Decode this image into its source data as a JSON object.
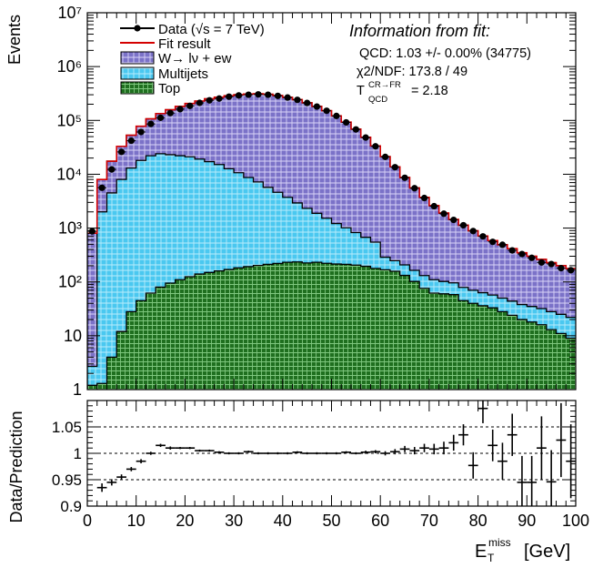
{
  "chart_data": [
    {
      "type": "histogram",
      "yscale": "log",
      "xlim": [
        0,
        100
      ],
      "ylim": [
        1,
        10000000
      ],
      "ylabel": "Events",
      "yticks": [
        "1",
        "10",
        "10²",
        "10³",
        "10⁴",
        "10⁵",
        "10⁶",
        "10⁷"
      ],
      "bin_width": 2,
      "legend_placement": "top-left",
      "colors": {
        "data": "#000000",
        "fit": "#d40000",
        "w": "#7b72c8",
        "multijets": "#4ac8f0",
        "top": "#1f6f1f"
      },
      "legend": {
        "data": "Data (√s = 7 TeV)",
        "fit": "Fit result",
        "w": "W→ lν + ew",
        "multijets": "Multijets",
        "top": "Top"
      },
      "fit_info": {
        "title": "Information from fit:",
        "qcd": "QCD: 1.03 +/- 0.00% (34775)",
        "chi2": "χ2/NDF: 173.8 / 49",
        "tqcd_prefix": "T",
        "tqcd_sup": "CR→FR",
        "tqcd_sub": "QCD",
        "tqcd_value": "= 2.18"
      },
      "series": [
        {
          "name": "Top",
          "values": [
            1.2,
            1.3,
            4,
            12,
            28,
            45,
            62,
            80,
            95,
            110,
            125,
            140,
            150,
            160,
            170,
            182,
            192,
            202,
            212,
            220,
            232,
            235,
            225,
            232,
            222,
            215,
            212,
            205,
            195,
            178,
            168,
            158,
            132,
            102,
            76,
            62,
            60,
            58,
            45,
            40,
            36,
            33,
            28,
            24,
            20,
            18,
            16,
            13,
            11,
            9
          ]
        },
        {
          "name": "Multijets",
          "values": [
            1.5,
            2000,
            4500,
            8000,
            13000,
            18000,
            22000,
            24000,
            23000,
            22000,
            21000,
            19000,
            17000,
            15000,
            12500,
            10500,
            8500,
            7000,
            5500,
            4400,
            3500,
            2700,
            2100,
            1650,
            1300,
            1000,
            800,
            620,
            480,
            370,
            120,
            90,
            75,
            62,
            55,
            48,
            42,
            38,
            34,
            30,
            27,
            24,
            22,
            20,
            18,
            17,
            16,
            15,
            14,
            13
          ]
        },
        {
          "name": "W→ lν + ew",
          "values": [
            800,
            6000,
            13000,
            25000,
            40000,
            60000,
            85000,
            110000,
            135000,
            160000,
            185000,
            210000,
            235000,
            255000,
            275000,
            290000,
            300000,
            305000,
            300000,
            285000,
            265000,
            240000,
            210000,
            180000,
            150000,
            120000,
            92000,
            68000,
            48000,
            33000,
            21000,
            13500,
            8500,
            5400,
            3600,
            2500,
            1800,
            1350,
            1050,
            820,
            650,
            530,
            440,
            370,
            310,
            265,
            230,
            200,
            175,
            155
          ]
        }
      ],
      "data_values": [
        870,
        5600,
        12300,
        26000,
        42000,
        61000,
        86000,
        112000,
        137000,
        162000,
        186000,
        212000,
        236000,
        255000,
        276000,
        291000,
        300000,
        304000,
        300000,
        286000,
        266000,
        241000,
        211000,
        181000,
        151000,
        121000,
        92000,
        68000,
        48000,
        33000,
        21000,
        13500,
        8600,
        5500,
        3620,
        2550,
        1850,
        1420,
        1130,
        880,
        700,
        555,
        490,
        385,
        330,
        280,
        230,
        215,
        180,
        165
      ]
    },
    {
      "type": "ratio",
      "xlabel": "E_T^miss [GeV]",
      "xlabel_main": "E",
      "xlabel_sub": "T",
      "xlabel_sup": "miss",
      "xlabel_unit": "[GeV]",
      "ylabel": "Data/Prediction",
      "xlim": [
        0,
        100
      ],
      "ylim": [
        0.9,
        1.1
      ],
      "xticks": [
        "0",
        "10",
        "20",
        "30",
        "40",
        "50",
        "60",
        "70",
        "80",
        "90",
        "100"
      ],
      "yticks": [
        "0.9",
        "0.95",
        "1",
        "1.05"
      ],
      "reference_lines": [
        0.95,
        1.0,
        1.05
      ],
      "x": [
        3,
        5,
        7,
        9,
        11,
        13,
        15,
        17,
        19,
        21,
        23,
        25,
        27,
        29,
        31,
        33,
        35,
        37,
        39,
        41,
        43,
        45,
        47,
        49,
        51,
        53,
        55,
        57,
        59,
        61,
        63,
        65,
        67,
        69,
        71,
        73,
        75,
        77,
        79,
        81,
        83,
        85,
        87,
        89,
        91,
        93,
        95,
        97,
        99
      ],
      "y": [
        0.935,
        0.945,
        0.955,
        0.97,
        0.985,
        1.0,
        1.015,
        1.01,
        1.01,
        1.01,
        1.005,
        1.005,
        1.002,
        1.0,
        1.0,
        1.003,
        1.0,
        1.0,
        1.0,
        1.0,
        1.002,
        1.0,
        1.0,
        1.0,
        1.0,
        1.002,
        1.0,
        1.002,
        1.003,
        1.0,
        1.003,
        1.008,
        1.005,
        1.01,
        1.008,
        1.01,
        1.02,
        1.035,
        0.977,
        1.085,
        1.015,
        0.985,
        1.035,
        0.945,
        0.945,
        1.01,
        0.946,
        1.025,
        0.985
      ],
      "yerr": [
        0.008,
        0.006,
        0.005,
        0.004,
        0.004,
        0.003,
        0.003,
        0.003,
        0.002,
        0.002,
        0.002,
        0.002,
        0.002,
        0.002,
        0.002,
        0.002,
        0.002,
        0.002,
        0.002,
        0.002,
        0.002,
        0.002,
        0.002,
        0.002,
        0.002,
        0.002,
        0.002,
        0.003,
        0.003,
        0.004,
        0.005,
        0.006,
        0.007,
        0.008,
        0.01,
        0.012,
        0.015,
        0.02,
        0.025,
        0.028,
        0.03,
        0.035,
        0.04,
        0.05,
        0.05,
        0.06,
        0.06,
        0.07,
        0.07
      ]
    }
  ]
}
